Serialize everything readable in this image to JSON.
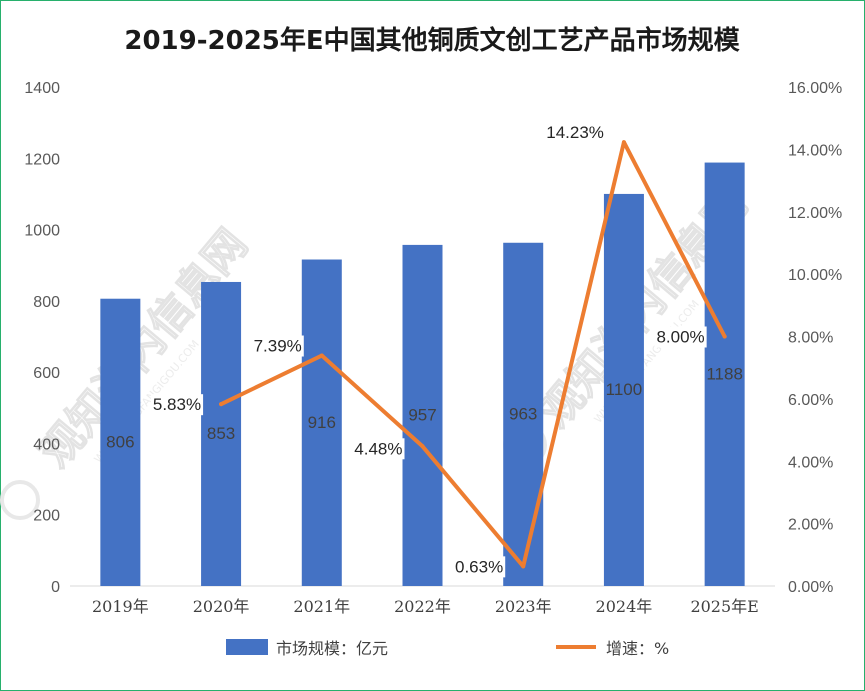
{
  "chart_data": {
    "type": "bar+line",
    "title": "2019-2025年E中国其他铜质文创工艺产品市场规模",
    "categories": [
      "2019年",
      "2020年",
      "2021年",
      "2022年",
      "2023年",
      "2024年",
      "2025年E"
    ],
    "series": [
      {
        "name": "市场规模：亿元",
        "type": "bar",
        "axis": "left",
        "values": [
          806,
          853,
          916,
          957,
          963,
          1100,
          1188
        ],
        "labels": [
          "806",
          "853",
          "916",
          "957",
          "963",
          "1100",
          "1188"
        ],
        "color": "#4472c4"
      },
      {
        "name": "增速：%",
        "type": "line",
        "axis": "right",
        "values": [
          null,
          5.83,
          7.39,
          4.48,
          0.63,
          14.23,
          8.0
        ],
        "labels": [
          "",
          "5.83%",
          "7.39%",
          "4.48%",
          "0.63%",
          "14.23%",
          "8.00%"
        ],
        "color": "#ed7d31"
      }
    ],
    "y_left": {
      "min": 0,
      "max": 1400,
      "ticks": [
        "0",
        "200",
        "400",
        "600",
        "800",
        "1000",
        "1200",
        "1400"
      ]
    },
    "y_right": {
      "min": 0,
      "max": 16,
      "ticks": [
        "0.00%",
        "2.00%",
        "4.00%",
        "6.00%",
        "8.00%",
        "10.00%",
        "12.00%",
        "14.00%",
        "16.00%"
      ]
    },
    "grid": false,
    "legend_position": "bottom"
  },
  "watermark": {
    "text_cn": "观知海内信息网",
    "text_en": "WWW.DONGFANGIGOU.COM"
  },
  "colors": {
    "bar": "#4472c4",
    "line": "#ed7d31",
    "border": "#27b06c"
  }
}
